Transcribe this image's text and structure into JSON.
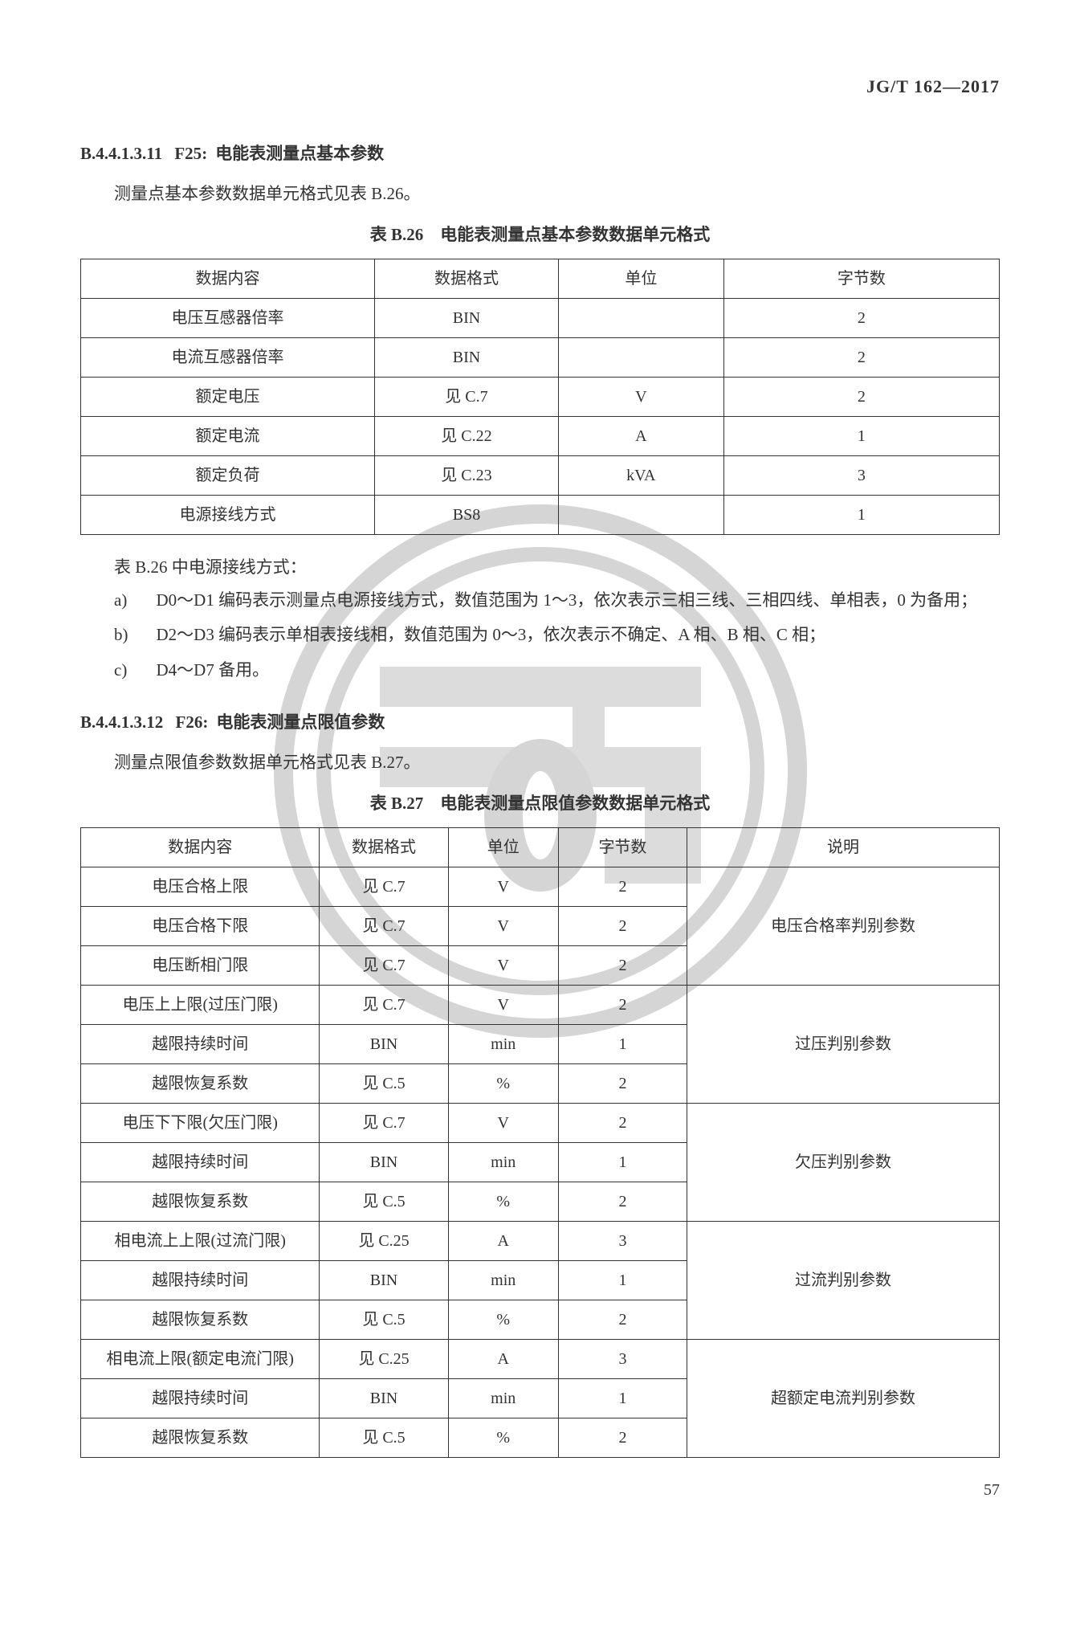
{
  "document": {
    "standard_code": "JG/T 162—2017",
    "page_number": "57"
  },
  "section1": {
    "number": "B.4.4.1.3.11",
    "code": "F25",
    "title": "电能表测量点基本参数",
    "intro": "测量点基本参数数据单元格式见表 B.26。",
    "table_title": "表 B.26　电能表测量点基本参数数据单元格式",
    "columns": [
      "数据内容",
      "数据格式",
      "单位",
      "字节数"
    ],
    "rows": [
      [
        "电压互感器倍率",
        "BIN",
        "",
        "2"
      ],
      [
        "电流互感器倍率",
        "BIN",
        "",
        "2"
      ],
      [
        "额定电压",
        "见 C.7",
        "V",
        "2"
      ],
      [
        "额定电流",
        "见 C.22",
        "A",
        "1"
      ],
      [
        "额定负荷",
        "见 C.23",
        "kVA",
        "3"
      ],
      [
        "电源接线方式",
        "BS8",
        "",
        "1"
      ]
    ],
    "notes_intro": "表 B.26 中电源接线方式：",
    "notes": [
      {
        "label": "a)",
        "text": "D0～D1 编码表示测量点电源接线方式，数值范围为 1～3，依次表示三相三线、三相四线、单相表，0 为备用；"
      },
      {
        "label": "b)",
        "text": "D2～D3 编码表示单相表接线相，数值范围为 0～3，依次表示不确定、A 相、B 相、C 相；"
      },
      {
        "label": "c)",
        "text": "D4～D7 备用。"
      }
    ]
  },
  "section2": {
    "number": "B.4.4.1.3.12",
    "code": "F26",
    "title": "电能表测量点限值参数",
    "intro": "测量点限值参数数据单元格式见表 B.27。",
    "table_title": "表 B.27　电能表测量点限值参数数据单元格式",
    "columns": [
      "数据内容",
      "数据格式",
      "单位",
      "字节数",
      "说明"
    ],
    "groups": [
      {
        "desc": "电压合格率判别参数",
        "span": 3,
        "rows": [
          [
            "电压合格上限",
            "见 C.7",
            "V",
            "2"
          ],
          [
            "电压合格下限",
            "见 C.7",
            "V",
            "2"
          ],
          [
            "电压断相门限",
            "见 C.7",
            "V",
            "2"
          ]
        ]
      },
      {
        "desc": "过压判别参数",
        "span": 3,
        "rows": [
          [
            "电压上上限(过压门限)",
            "见 C.7",
            "V",
            "2"
          ],
          [
            "越限持续时间",
            "BIN",
            "min",
            "1"
          ],
          [
            "越限恢复系数",
            "见 C.5",
            "%",
            "2"
          ]
        ]
      },
      {
        "desc": "欠压判别参数",
        "span": 3,
        "rows": [
          [
            "电压下下限(欠压门限)",
            "见 C.7",
            "V",
            "2"
          ],
          [
            "越限持续时间",
            "BIN",
            "min",
            "1"
          ],
          [
            "越限恢复系数",
            "见 C.5",
            "%",
            "2"
          ]
        ]
      },
      {
        "desc": "过流判别参数",
        "span": 3,
        "rows": [
          [
            "相电流上上限(过流门限)",
            "见 C.25",
            "A",
            "3"
          ],
          [
            "越限持续时间",
            "BIN",
            "min",
            "1"
          ],
          [
            "越限恢复系数",
            "见 C.5",
            "%",
            "2"
          ]
        ]
      },
      {
        "desc": "超额定电流判别参数",
        "span": 3,
        "rows": [
          [
            "相电流上限(额定电流门限)",
            "见 C.25",
            "A",
            "3"
          ],
          [
            "越限持续时间",
            "BIN",
            "min",
            "1"
          ],
          [
            "越限恢复系数",
            "见 C.5",
            "%",
            "2"
          ]
        ]
      }
    ]
  },
  "watermark": {
    "outer_stroke": "#8a8a8a",
    "stroke_width_outer": 24,
    "stroke_width_inner": 18,
    "fill": "#8a8a8a"
  }
}
